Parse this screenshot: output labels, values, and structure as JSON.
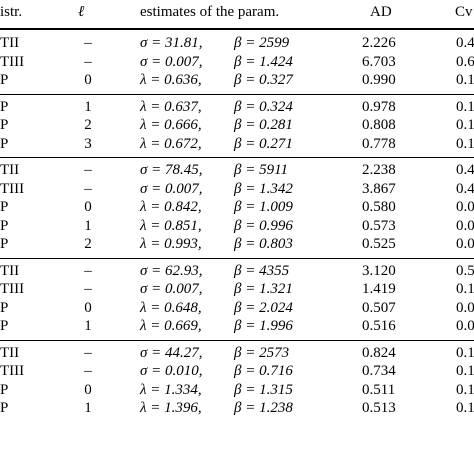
{
  "header": {
    "distr": "istr.",
    "ell": "ℓ",
    "estimates": "estimates of the param.",
    "ad": "AD",
    "cvm": "Cv"
  },
  "groups": [
    {
      "rows": [
        {
          "distr": "TII",
          "ell": "–",
          "p1": "σ = 31.81,",
          "p2": "β = 2599",
          "ad": "2.226",
          "cvm": "0.4"
        },
        {
          "distr": "TIII",
          "ell": "–",
          "p1": "σ = 0.007,",
          "p2": "β = 1.424",
          "ad": "6.703",
          "cvm": "0.6"
        },
        {
          "distr": "P",
          "ell": "0",
          "p1": "λ = 0.636,",
          "p2": "β = 0.327",
          "ad": "0.990",
          "cvm": "0.1"
        }
      ]
    },
    {
      "rows": [
        {
          "distr": "P",
          "ell": "1",
          "p1": "λ = 0.637,",
          "p2": "β = 0.324",
          "ad": "0.978",
          "cvm": "0.1"
        },
        {
          "distr": "P",
          "ell": "2",
          "p1": "λ = 0.666,",
          "p2": "β = 0.281",
          "ad": "0.808",
          "cvm": "0.1"
        },
        {
          "distr": "P",
          "ell": "3",
          "p1": "λ = 0.672,",
          "p2": "β = 0.271",
          "ad": "0.778",
          "cvm": "0.1"
        }
      ]
    },
    {
      "rows": [
        {
          "distr": "TII",
          "ell": "–",
          "p1": "σ = 78.45,",
          "p2": "β = 5911",
          "ad": "2.238",
          "cvm": "0.4"
        },
        {
          "distr": "TIII",
          "ell": "–",
          "p1": "σ = 0.007,",
          "p2": "β = 1.342",
          "ad": "3.867",
          "cvm": "0.4"
        },
        {
          "distr": "P",
          "ell": "0",
          "p1": "λ = 0.842,",
          "p2": "β = 1.009",
          "ad": "0.580",
          "cvm": "0.0"
        },
        {
          "distr": "P",
          "ell": "1",
          "p1": "λ = 0.851,",
          "p2": "β = 0.996",
          "ad": "0.573",
          "cvm": "0.0"
        },
        {
          "distr": "P",
          "ell": "2",
          "p1": "λ = 0.993,",
          "p2": "β = 0.803",
          "ad": "0.525",
          "cvm": "0.0"
        }
      ]
    },
    {
      "rows": [
        {
          "distr": "TII",
          "ell": "–",
          "p1": "σ = 62.93,",
          "p2": "β = 4355",
          "ad": "3.120",
          "cvm": "0.5"
        },
        {
          "distr": "TIII",
          "ell": "–",
          "p1": "σ = 0.007,",
          "p2": "β = 1.321",
          "ad": "1.419",
          "cvm": "0.1"
        },
        {
          "distr": "P",
          "ell": "0",
          "p1": "λ = 0.648,",
          "p2": "β = 2.024",
          "ad": "0.507",
          "cvm": "0.0"
        },
        {
          "distr": "P",
          "ell": "1",
          "p1": "λ = 0.669,",
          "p2": "β = 1.996",
          "ad": "0.516",
          "cvm": "0.0"
        }
      ]
    },
    {
      "rows": [
        {
          "distr": "TII",
          "ell": "–",
          "p1": "σ = 44.27,",
          "p2": "β = 2573",
          "ad": "0.824",
          "cvm": "0.1"
        },
        {
          "distr": "TIII",
          "ell": "–",
          "p1": "σ = 0.010,",
          "p2": "β = 0.716",
          "ad": "0.734",
          "cvm": "0.1"
        },
        {
          "distr": "P",
          "ell": "0",
          "p1": "λ = 1.334,",
          "p2": "β = 1.315",
          "ad": "0.511",
          "cvm": "0.1"
        },
        {
          "distr": "P",
          "ell": "1",
          "p1": "λ = 1.396,",
          "p2": "β = 1.238",
          "ad": "0.513",
          "cvm": "0.1"
        }
      ]
    }
  ]
}
